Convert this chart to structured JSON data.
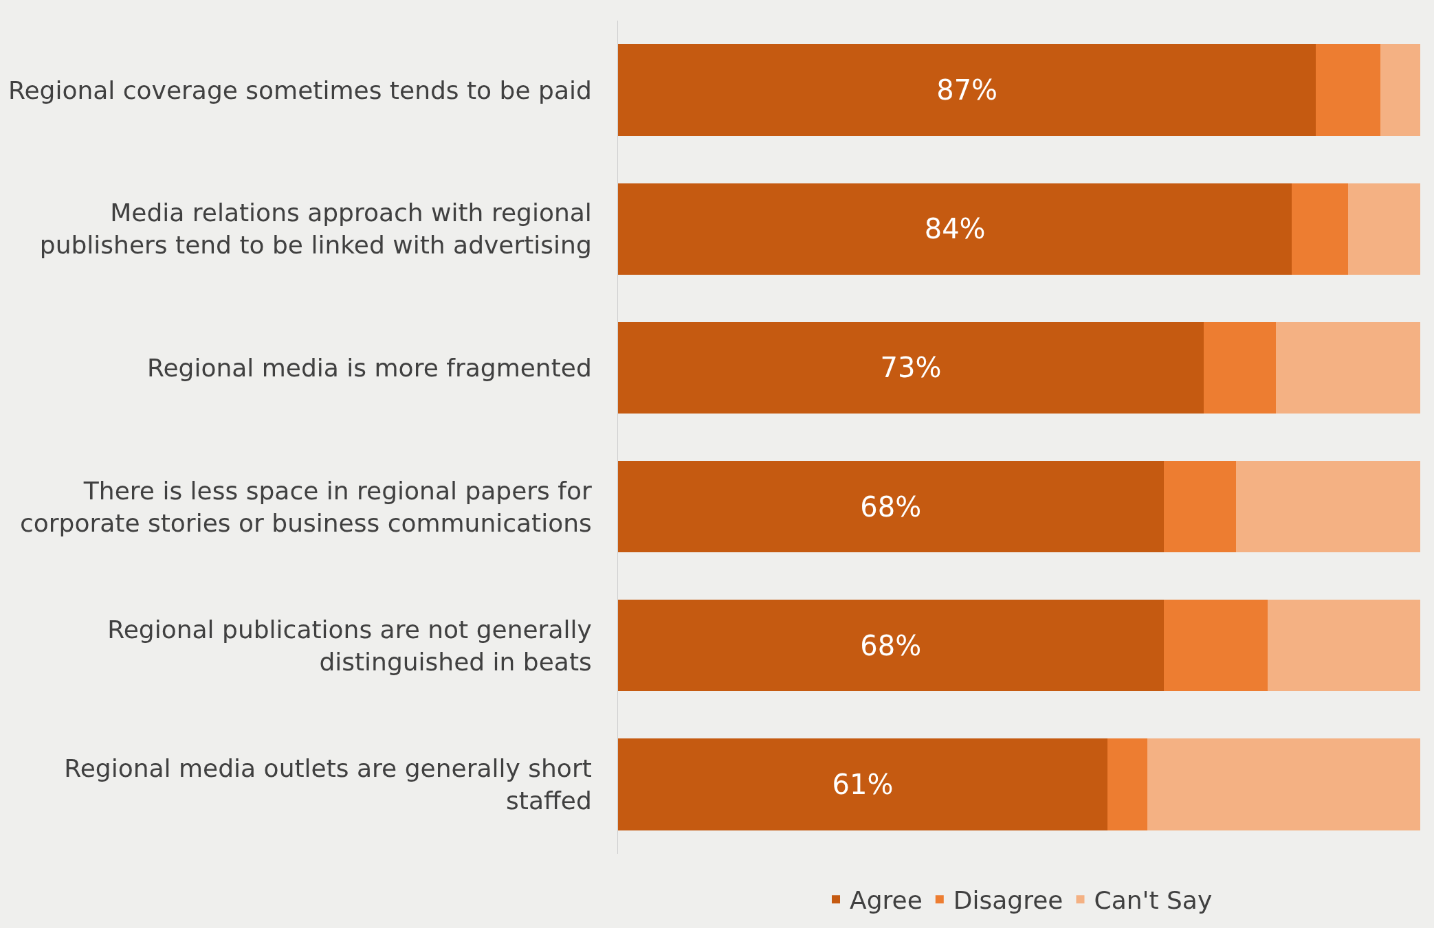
{
  "chart_data": {
    "type": "bar",
    "orientation": "horizontal",
    "stacked": true,
    "categories": [
      "Regional coverage sometimes tends to be paid",
      "Media relations approach with regional publishers tend to be linked with advertising",
      "Regional media is more fragmented",
      "There is less space in regional papers for corporate stories or business communications",
      "Regional publications are not generally distinguished in beats",
      "Regional media outlets are generally short staffed"
    ],
    "series": [
      {
        "name": "Agree",
        "color": "#c55a11",
        "values": [
          87,
          84,
          73,
          68,
          68,
          61
        ],
        "value_labels": [
          "87%",
          "84%",
          "73%",
          "68%",
          "68%",
          "61%"
        ]
      },
      {
        "name": "Disagree",
        "color": "#ed7d31",
        "values": [
          8,
          7,
          9,
          9,
          13,
          5
        ]
      },
      {
        "name": "Can't Say",
        "color": "#f4b183",
        "values": [
          5,
          9,
          18,
          23,
          19,
          34
        ]
      }
    ],
    "xlim": [
      0,
      100
    ],
    "grid": false,
    "legend": "bottom"
  }
}
